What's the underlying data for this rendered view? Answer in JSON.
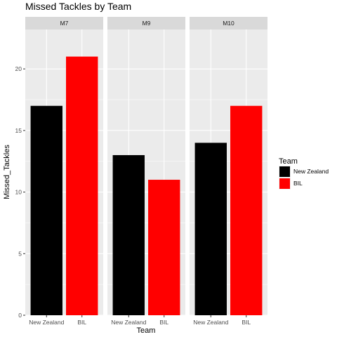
{
  "chart_data": {
    "type": "bar",
    "title": "Missed Tackles  by Team",
    "xlabel": "Team",
    "ylabel": "Missed_Tackles",
    "ylim": [
      0,
      23.2
    ],
    "yticks": [
      0,
      5,
      10,
      15,
      20
    ],
    "categories": [
      "New Zealand",
      "BIL"
    ],
    "facets": [
      {
        "label": "M7",
        "values": [
          17,
          21
        ]
      },
      {
        "label": "M9",
        "values": [
          13,
          11
        ]
      },
      {
        "label": "M10",
        "values": [
          14,
          17
        ]
      }
    ],
    "legend": {
      "title": "Team",
      "placement": "right",
      "entries": [
        {
          "name": "New Zealand",
          "color": "#000000"
        },
        {
          "name": "BIL",
          "color": "#ff0000"
        }
      ]
    },
    "grid": true,
    "colors": {
      "panel_bg": "#ebebeb",
      "strip_bg": "#d9d9d9",
      "grid": "#ffffff"
    }
  }
}
